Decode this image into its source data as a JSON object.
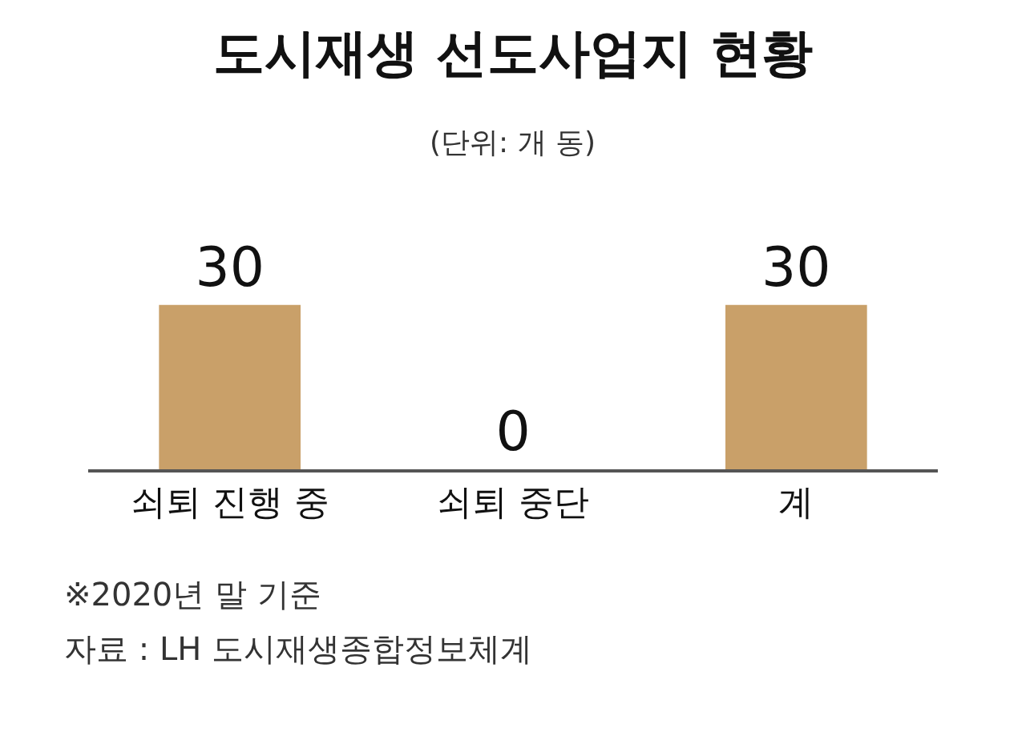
{
  "chart_data": {
    "type": "bar",
    "title": "도시재생 선도사업지 현황",
    "subtitle": "(단위: 개 동)",
    "categories": [
      "쇠퇴 진행 중",
      "쇠퇴 중단",
      "계"
    ],
    "values": [
      30,
      0,
      30
    ],
    "color": "#c9a069",
    "data_labels": true,
    "annotations": [
      "※2020년 말 기준",
      "자료 : LH 도시재생종합정보체계"
    ]
  }
}
